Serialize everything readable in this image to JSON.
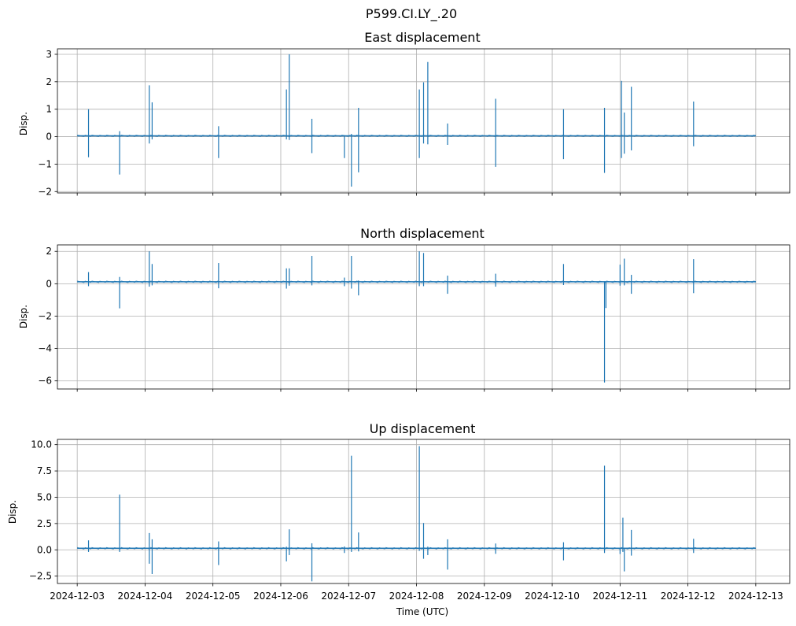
{
  "chart_data": [
    {
      "type": "line",
      "title": "East displacement",
      "ylabel": "Disp.",
      "xlabel": "",
      "xlim": [
        "2024-12-02T17:00",
        "2024-12-13T12:00"
      ],
      "ylim": [
        -2.05,
        3.2
      ],
      "yticks": [
        -2,
        -1,
        0,
        1,
        2,
        3
      ],
      "ytick_labels": [
        "−2",
        "−1",
        "0",
        "1",
        "2",
        "3"
      ],
      "grid": true,
      "color": "#1f77b4",
      "baseline": 0.03,
      "spikes": [
        {
          "t": "2024-12-03T04:00",
          "hi": 1.0,
          "lo": -0.75
        },
        {
          "t": "2024-12-03T15:00",
          "hi": 0.2,
          "lo": -1.38
        },
        {
          "t": "2024-12-04T01:30",
          "hi": 1.87,
          "lo": -0.25
        },
        {
          "t": "2024-12-04T02:30",
          "hi": 1.25,
          "lo": -0.1
        },
        {
          "t": "2024-12-05T02:00",
          "hi": 0.38,
          "lo": -0.78
        },
        {
          "t": "2024-12-06T02:00",
          "hi": 1.72,
          "lo": -0.1
        },
        {
          "t": "2024-12-06T03:00",
          "hi": 3.0,
          "lo": -0.12
        },
        {
          "t": "2024-12-06T11:00",
          "hi": 0.65,
          "lo": -0.6
        },
        {
          "t": "2024-12-06T22:30",
          "hi": 0.05,
          "lo": -0.78
        },
        {
          "t": "2024-12-07T01:00",
          "hi": 0.1,
          "lo": -1.82
        },
        {
          "t": "2024-12-07T03:30",
          "hi": 1.05,
          "lo": -1.3
        },
        {
          "t": "2024-12-08T01:00",
          "hi": 1.72,
          "lo": -0.78
        },
        {
          "t": "2024-12-08T02:30",
          "hi": 1.98,
          "lo": -0.25
        },
        {
          "t": "2024-12-08T04:00",
          "hi": 2.72,
          "lo": -0.28
        },
        {
          "t": "2024-12-08T11:00",
          "hi": 0.48,
          "lo": -0.3
        },
        {
          "t": "2024-12-09T04:00",
          "hi": 1.38,
          "lo": -1.1
        },
        {
          "t": "2024-12-10T04:00",
          "hi": 1.0,
          "lo": -0.82
        },
        {
          "t": "2024-12-10T18:30",
          "hi": 1.05,
          "lo": -1.32
        },
        {
          "t": "2024-12-11T00:30",
          "hi": 2.03,
          "lo": -0.78
        },
        {
          "t": "2024-12-11T01:30",
          "hi": 0.88,
          "lo": -0.62
        },
        {
          "t": "2024-12-11T04:00",
          "hi": 1.82,
          "lo": -0.5
        },
        {
          "t": "2024-12-12T02:00",
          "hi": 1.28,
          "lo": -0.35
        }
      ]
    },
    {
      "type": "line",
      "title": "North displacement",
      "ylabel": "Disp.",
      "xlabel": "",
      "xlim": [
        "2024-12-02T17:00",
        "2024-12-13T12:00"
      ],
      "ylim": [
        -6.5,
        2.4
      ],
      "yticks": [
        -6,
        -4,
        -2,
        0,
        2
      ],
      "ytick_labels": [
        "−6",
        "−4",
        "−2",
        "0",
        "2"
      ],
      "grid": true,
      "color": "#1f77b4",
      "baseline": 0.12,
      "spikes": [
        {
          "t": "2024-12-03T04:00",
          "hi": 0.72,
          "lo": -0.15
        },
        {
          "t": "2024-12-03T15:00",
          "hi": 0.42,
          "lo": -1.52
        },
        {
          "t": "2024-12-04T01:30",
          "hi": 2.0,
          "lo": -0.18
        },
        {
          "t": "2024-12-04T02:30",
          "hi": 1.22,
          "lo": -0.1
        },
        {
          "t": "2024-12-05T02:00",
          "hi": 1.28,
          "lo": -0.28
        },
        {
          "t": "2024-12-06T02:00",
          "hi": 0.95,
          "lo": -0.3
        },
        {
          "t": "2024-12-06T03:00",
          "hi": 0.95,
          "lo": -0.12
        },
        {
          "t": "2024-12-06T11:00",
          "hi": 1.72,
          "lo": -0.1
        },
        {
          "t": "2024-12-06T22:30",
          "hi": 0.38,
          "lo": -0.15
        },
        {
          "t": "2024-12-07T01:00",
          "hi": 1.72,
          "lo": -0.3
        },
        {
          "t": "2024-12-07T03:30",
          "hi": 0.2,
          "lo": -0.72
        },
        {
          "t": "2024-12-08T01:00",
          "hi": 2.0,
          "lo": -0.15
        },
        {
          "t": "2024-12-08T02:30",
          "hi": 1.9,
          "lo": -0.15
        },
        {
          "t": "2024-12-08T11:00",
          "hi": 0.5,
          "lo": -0.62
        },
        {
          "t": "2024-12-09T04:00",
          "hi": 0.62,
          "lo": -0.18
        },
        {
          "t": "2024-12-10T04:00",
          "hi": 1.22,
          "lo": -0.08
        },
        {
          "t": "2024-12-10T18:30",
          "hi": 0.15,
          "lo": -6.1
        },
        {
          "t": "2024-12-10T19:00",
          "hi": 0.1,
          "lo": -1.5
        },
        {
          "t": "2024-12-11T00:00",
          "hi": 1.18,
          "lo": -0.12
        },
        {
          "t": "2024-12-11T01:30",
          "hi": 1.55,
          "lo": -0.1
        },
        {
          "t": "2024-12-11T04:00",
          "hi": 0.55,
          "lo": -0.62
        },
        {
          "t": "2024-12-12T02:00",
          "hi": 1.52,
          "lo": -0.58
        }
      ]
    },
    {
      "type": "line",
      "title": "Up displacement",
      "ylabel": "Disp.",
      "xlabel": "Time (UTC)",
      "xlim": [
        "2024-12-02T17:00",
        "2024-12-13T12:00"
      ],
      "ylim": [
        -3.2,
        10.5
      ],
      "yticks": [
        -2.5,
        0.0,
        2.5,
        5.0,
        7.5,
        10.0
      ],
      "ytick_labels": [
        "−2.5",
        "0.0",
        "2.5",
        "5.0",
        "7.5",
        "10.0"
      ],
      "xticks": [
        "2024-12-03",
        "2024-12-04",
        "2024-12-05",
        "2024-12-06",
        "2024-12-07",
        "2024-12-08",
        "2024-12-09",
        "2024-12-10",
        "2024-12-11",
        "2024-12-12",
        "2024-12-13"
      ],
      "grid": true,
      "color": "#1f77b4",
      "baseline": 0.15,
      "spikes": [
        {
          "t": "2024-12-03T04:00",
          "hi": 0.9,
          "lo": -0.2
        },
        {
          "t": "2024-12-03T15:00",
          "hi": 5.25,
          "lo": -0.2
        },
        {
          "t": "2024-12-04T01:30",
          "hi": 1.6,
          "lo": -1.32
        },
        {
          "t": "2024-12-04T02:30",
          "hi": 1.0,
          "lo": -2.3
        },
        {
          "t": "2024-12-05T02:00",
          "hi": 0.8,
          "lo": -1.45
        },
        {
          "t": "2024-12-06T02:00",
          "hi": 0.3,
          "lo": -1.1
        },
        {
          "t": "2024-12-06T03:00",
          "hi": 1.95,
          "lo": -0.5
        },
        {
          "t": "2024-12-06T11:00",
          "hi": 0.62,
          "lo": -3.0
        },
        {
          "t": "2024-12-06T22:30",
          "hi": 0.32,
          "lo": -0.3
        },
        {
          "t": "2024-12-07T01:00",
          "hi": 8.95,
          "lo": -0.2
        },
        {
          "t": "2024-12-07T03:30",
          "hi": 1.65,
          "lo": -0.15
        },
        {
          "t": "2024-12-08T01:00",
          "hi": 9.85,
          "lo": -0.1
        },
        {
          "t": "2024-12-08T02:30",
          "hi": 2.55,
          "lo": -0.85
        },
        {
          "t": "2024-12-08T04:00",
          "hi": 0.3,
          "lo": -0.5
        },
        {
          "t": "2024-12-08T11:00",
          "hi": 1.0,
          "lo": -1.88
        },
        {
          "t": "2024-12-09T04:00",
          "hi": 0.6,
          "lo": -0.38
        },
        {
          "t": "2024-12-10T04:00",
          "hi": 0.72,
          "lo": -1.0
        },
        {
          "t": "2024-12-10T18:30",
          "hi": 8.0,
          "lo": -0.3
        },
        {
          "t": "2024-12-11T00:00",
          "hi": 0.2,
          "lo": -0.4
        },
        {
          "t": "2024-12-11T01:00",
          "hi": 3.05,
          "lo": -0.2
        },
        {
          "t": "2024-12-11T01:30",
          "hi": 0.2,
          "lo": -2.05
        },
        {
          "t": "2024-12-11T04:00",
          "hi": 1.9,
          "lo": -0.55
        },
        {
          "t": "2024-12-12T02:00",
          "hi": 1.05,
          "lo": -0.3
        }
      ]
    }
  ],
  "figure": {
    "suptitle": "P599.CI.LY_.20"
  }
}
